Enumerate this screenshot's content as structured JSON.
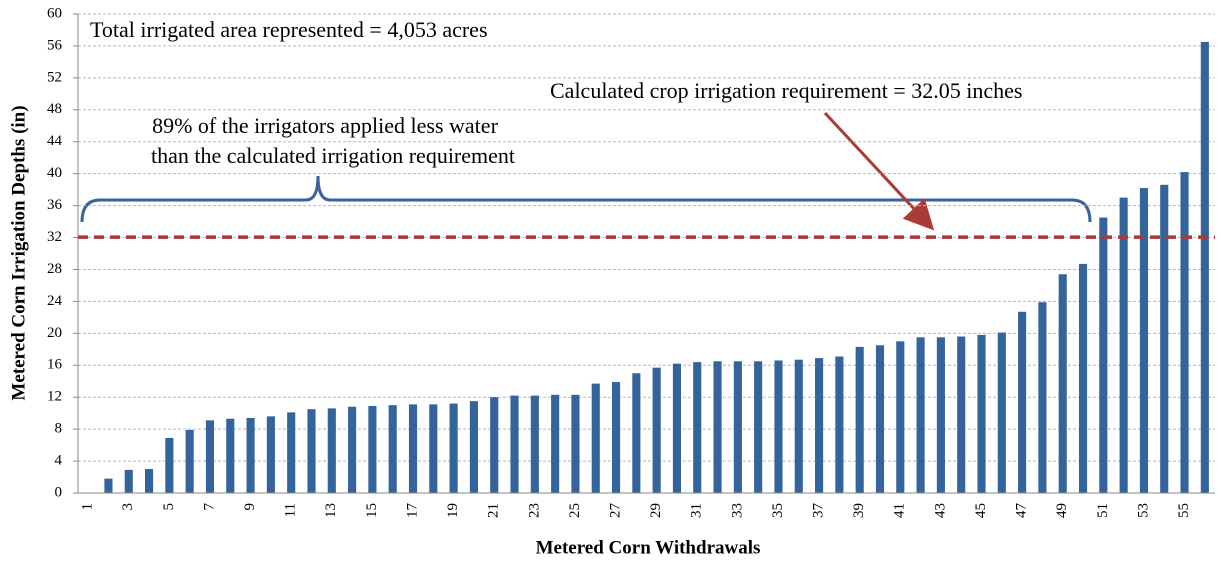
{
  "chart_data": {
    "type": "bar",
    "x_label": "Metered Corn Withdrawals",
    "y_label": "Metered Corn Irrigation Depths (in)",
    "categories": [
      "1",
      null,
      "3",
      null,
      "5",
      null,
      "7",
      null,
      "9",
      null,
      "11",
      null,
      "13",
      null,
      "15",
      null,
      "17",
      null,
      "19",
      null,
      "21",
      null,
      "23",
      null,
      "25",
      null,
      "27",
      null,
      "29",
      null,
      "31",
      null,
      "33",
      null,
      "35",
      null,
      "37",
      null,
      "39",
      null,
      "41",
      null,
      "43",
      null,
      "45",
      null,
      "47",
      null,
      "49",
      null,
      "51",
      null,
      "53",
      null,
      "55",
      null
    ],
    "values": [
      0,
      1.8,
      2.9,
      3.0,
      6.9,
      7.9,
      9.1,
      9.3,
      9.4,
      9.6,
      10.1,
      10.5,
      10.6,
      10.8,
      10.9,
      11.0,
      11.1,
      11.1,
      11.2,
      11.5,
      12.0,
      12.2,
      12.2,
      12.3,
      12.3,
      13.7,
      13.9,
      15.0,
      15.7,
      16.2,
      16.4,
      16.5,
      16.5,
      16.5,
      16.6,
      16.7,
      16.9,
      17.1,
      18.3,
      18.5,
      19.0,
      19.5,
      19.5,
      19.6,
      19.8,
      20.1,
      22.7,
      23.9,
      27.4,
      28.7,
      34.5,
      37.0,
      38.2,
      38.6,
      40.2,
      56.5
    ],
    "color": "#35649c",
    "ylim": [
      0,
      60
    ],
    "yticks": [
      0,
      4,
      8,
      12,
      16,
      20,
      24,
      28,
      32,
      36,
      40,
      44,
      48,
      52,
      56,
      60
    ],
    "grid": true,
    "reference_line": {
      "value": 32.05,
      "color": "#a93a38"
    },
    "annotations": {
      "total_area": "Total irrigated area represented = 4,053 acres",
      "requirement": "Calculated crop irrigation requirement = 32.05 inches",
      "share": [
        "89% of the irrigators applied less water",
        "than the calculated  irrigation requirement"
      ]
    }
  }
}
